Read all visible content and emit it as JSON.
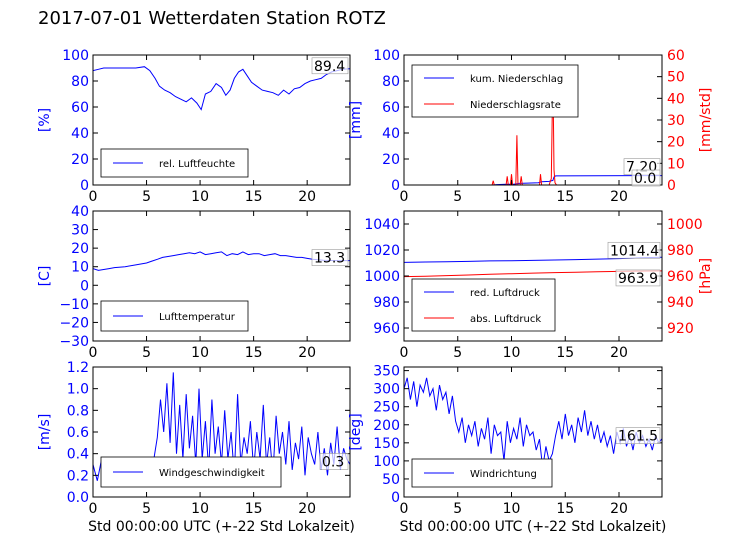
{
  "page_title": "2017-07-01 Wetterdaten Station ROTZ",
  "colors": {
    "primary": "#0000ff",
    "secondary": "#ff0000",
    "axis": "#000000"
  },
  "chart_data": [
    {
      "id": "humidity",
      "type": "line",
      "ylabel": "[%]",
      "xlim": [
        0,
        24
      ],
      "ylim": [
        0,
        100
      ],
      "xticks": [
        0,
        5,
        10,
        15,
        20
      ],
      "yticks": [
        0,
        20,
        40,
        60,
        80,
        100
      ],
      "legend_position": "lower-left",
      "last_value_label": "89.4",
      "series": [
        {
          "name": "rel. Luftfeuchte",
          "color": "#0000ff",
          "axis": "left",
          "x": [
            0,
            0.5,
            1,
            2,
            3,
            4,
            4.8,
            5.3,
            5.8,
            6.2,
            6.7,
            7.2,
            7.7,
            8.2,
            8.7,
            9.2,
            9.7,
            10.1,
            10.5,
            11,
            11.5,
            12,
            12.4,
            12.8,
            13.2,
            13.6,
            14,
            14.4,
            14.8,
            15.3,
            15.8,
            16.3,
            16.8,
            17.3,
            17.8,
            18.3,
            18.8,
            19.3,
            19.8,
            20.3,
            20.8,
            21.3,
            21.8,
            22.3,
            22.8,
            23.3,
            24
          ],
          "y": [
            88,
            89,
            90,
            90,
            90,
            90,
            91,
            88,
            82,
            76,
            73,
            71,
            68,
            66,
            64,
            67,
            63,
            58,
            70,
            72,
            78,
            75,
            69,
            73,
            82,
            87,
            89,
            84,
            79,
            76,
            73,
            72,
            71,
            69,
            73,
            70,
            74,
            75,
            78,
            80,
            81,
            82,
            85,
            87,
            88,
            89,
            89.4
          ]
        }
      ]
    },
    {
      "id": "precipitation",
      "type": "line",
      "ylabel": "[mm]",
      "ylabel_right": "[mm/std]",
      "xlim": [
        0,
        24
      ],
      "ylim": [
        0,
        100
      ],
      "ylim_right": [
        0,
        60
      ],
      "xticks": [
        0,
        5,
        10,
        15,
        20
      ],
      "yticks": [
        0,
        20,
        40,
        60,
        80,
        100
      ],
      "yticks_right": [
        0,
        10,
        20,
        30,
        40,
        50,
        60
      ],
      "legend_position": "upper-left",
      "last_value_labels": [
        "7.20",
        "0.0"
      ],
      "series": [
        {
          "name": "kum. Niederschlag",
          "color": "#0000ff",
          "axis": "left",
          "x": [
            0,
            8.2,
            8.6,
            9.5,
            10.2,
            10.5,
            10.7,
            11.5,
            12.5,
            12.8,
            13.5,
            13.85,
            13.95,
            14.1,
            18,
            22,
            24
          ],
          "y": [
            0,
            0,
            0.3,
            0.5,
            0.6,
            1.0,
            1.2,
            1.5,
            1.8,
            2.5,
            2.8,
            3.5,
            6.2,
            7.0,
            7.1,
            7.2,
            7.2
          ]
        }
      ],
      "series_right": [
        {
          "name": "Niederschlagsrate",
          "color": "#ff0000",
          "axis": "right",
          "x": [
            0,
            8.2,
            8.3,
            8.4,
            9.0,
            9.5,
            9.6,
            9.7,
            9.9,
            10.0,
            10.1,
            10.4,
            10.5,
            10.6,
            10.8,
            10.9,
            11.0,
            11.5,
            12.6,
            12.7,
            12.8,
            13.5,
            13.7,
            13.85,
            13.95,
            14.05,
            14.2,
            16,
            20,
            24
          ],
          "y": [
            0,
            0,
            2,
            0,
            0,
            0,
            4,
            0,
            0,
            5,
            0,
            0,
            23,
            0,
            0,
            4,
            0,
            0,
            0,
            5,
            0,
            0,
            3,
            53,
            7,
            1,
            0,
            0,
            0,
            0
          ]
        }
      ]
    },
    {
      "id": "temperature",
      "type": "line",
      "ylabel": "[C]",
      "xlim": [
        0,
        24
      ],
      "ylim": [
        -30,
        40
      ],
      "xticks": [
        0,
        5,
        10,
        15,
        20
      ],
      "yticks": [
        -30,
        -20,
        -10,
        0,
        10,
        20,
        30,
        40
      ],
      "legend_position": "lower-left",
      "last_value_label": "13.3",
      "series": [
        {
          "name": "Lufttemperatur",
          "color": "#0000ff",
          "axis": "left",
          "x": [
            0,
            0.5,
            1,
            1.5,
            2,
            3,
            4,
            5,
            5.5,
            6,
            6.5,
            7,
            7.5,
            8,
            8.5,
            9,
            9.5,
            10,
            10.5,
            11,
            11.5,
            12,
            12.5,
            13,
            13.5,
            14,
            14.5,
            15,
            15.5,
            16,
            16.5,
            17,
            17.5,
            18,
            18.5,
            19,
            19.5,
            20,
            20.5,
            21,
            21.5,
            22,
            22.5,
            23,
            23.5,
            24
          ],
          "y": [
            9,
            8,
            8.5,
            9,
            9.5,
            10,
            11,
            12,
            13,
            14,
            15,
            15.5,
            16,
            16.5,
            17,
            17.5,
            17,
            18,
            16.5,
            17,
            17.5,
            18,
            16,
            17,
            16.5,
            18,
            16.5,
            17,
            17,
            16,
            16.5,
            17,
            16,
            16,
            15.5,
            15,
            15,
            14.5,
            14,
            13.8,
            13.5,
            13.4,
            13.3,
            13.3,
            13.3,
            13.3
          ]
        }
      ]
    },
    {
      "id": "pressure",
      "type": "line",
      "ylabel_right": "[hPa]",
      "xlim": [
        0,
        24
      ],
      "ylim": [
        950,
        1050
      ],
      "ylim_right": [
        910,
        1010
      ],
      "xticks": [
        0,
        5,
        10,
        15,
        20
      ],
      "yticks": [
        960,
        980,
        1000,
        1020,
        1040
      ],
      "yticks_right": [
        920,
        940,
        960,
        980,
        1000
      ],
      "legend_position": "lower-left",
      "last_value_labels": [
        "1014.4",
        "963.9"
      ],
      "series": [
        {
          "name": "red. Luftdruck",
          "color": "#0000ff",
          "axis": "left",
          "x": [
            0,
            2,
            4,
            6,
            8,
            10,
            12,
            14,
            16,
            18,
            20,
            22,
            24
          ],
          "y": [
            1010.5,
            1010.8,
            1011,
            1011.2,
            1011.6,
            1011.8,
            1012,
            1012.3,
            1012.6,
            1013,
            1013.4,
            1014,
            1014.4
          ]
        }
      ],
      "series_right": [
        {
          "name": "abs. Luftdruck",
          "color": "#ff0000",
          "axis": "right",
          "x": [
            0,
            2,
            4,
            6,
            8,
            10,
            12,
            14,
            16,
            18,
            20,
            22,
            24
          ],
          "y": [
            959.5,
            959.8,
            960.3,
            960.8,
            961.3,
            961.8,
            962.2,
            962.6,
            962.9,
            963.2,
            963.5,
            963.8,
            963.9
          ]
        }
      ]
    },
    {
      "id": "windspeed",
      "type": "line",
      "ylabel": "[m/s]",
      "xlabel": "Std 00:00:00 UTC (+-22 Std Lokalzeit)",
      "xlim": [
        0,
        24
      ],
      "ylim": [
        0,
        1.2
      ],
      "xticks": [
        0,
        5,
        10,
        15,
        20
      ],
      "yticks": [
        0.0,
        0.2,
        0.4,
        0.6,
        0.8,
        1.0,
        1.2
      ],
      "legend_position": "lower-left",
      "last_value_label": "0.3",
      "series": [
        {
          "name": "Windgeschwindigkeit",
          "color": "#0000ff",
          "axis": "left",
          "x": [
            0,
            0.4,
            0.8,
            1.2,
            1.6,
            2,
            2.4,
            2.8,
            3.2,
            3.6,
            4,
            4.4,
            4.8,
            5.2,
            5.6,
            6,
            6.3,
            6.6,
            6.9,
            7.2,
            7.5,
            7.8,
            8.1,
            8.4,
            8.7,
            9,
            9.3,
            9.6,
            9.9,
            10.2,
            10.5,
            10.8,
            11.1,
            11.4,
            11.7,
            12,
            12.3,
            12.6,
            12.9,
            13.2,
            13.5,
            13.8,
            14.1,
            14.4,
            14.7,
            15,
            15.3,
            15.6,
            15.9,
            16.2,
            16.5,
            16.8,
            17.1,
            17.4,
            17.7,
            18,
            18.3,
            18.6,
            18.9,
            19.2,
            19.5,
            19.8,
            20.1,
            20.4,
            20.7,
            21,
            21.3,
            21.6,
            21.9,
            22.2,
            22.5,
            22.8,
            23.1,
            23.4,
            23.7,
            24
          ],
          "y": [
            0.3,
            0.15,
            0.35,
            0.1,
            0.25,
            0.12,
            0.3,
            0.1,
            0.28,
            0.15,
            0.32,
            0.12,
            0.35,
            0.15,
            0.3,
            0.55,
            0.9,
            0.6,
            1.05,
            0.5,
            1.15,
            0.4,
            0.85,
            0.35,
            0.95,
            0.45,
            0.75,
            0.3,
            1.0,
            0.35,
            0.7,
            0.25,
            0.9,
            0.4,
            0.65,
            0.3,
            0.8,
            0.35,
            0.6,
            0.2,
            0.95,
            0.3,
            0.55,
            0.4,
            0.7,
            0.25,
            0.6,
            0.35,
            0.85,
            0.3,
            0.55,
            0.2,
            0.75,
            0.4,
            0.6,
            0.3,
            0.7,
            0.25,
            0.5,
            0.35,
            0.65,
            0.2,
            0.55,
            0.4,
            0.3,
            0.6,
            0.25,
            0.45,
            0.2,
            0.5,
            0.3,
            0.65,
            0.25,
            0.45,
            0.35,
            0.3
          ]
        }
      ]
    },
    {
      "id": "winddirection",
      "type": "line",
      "ylabel": "[deg]",
      "xlabel": "Std 00:00:00 UTC (+-22 Std Lokalzeit)",
      "xlim": [
        0,
        24
      ],
      "ylim": [
        0,
        360
      ],
      "xticks": [
        0,
        5,
        10,
        15,
        20
      ],
      "yticks": [
        0,
        50,
        100,
        150,
        200,
        250,
        300,
        350
      ],
      "legend_position": "lower-left",
      "last_value_label": "161.5",
      "series": [
        {
          "name": "Windrichtung",
          "color": "#0000ff",
          "axis": "left",
          "x": [
            0,
            0.3,
            0.6,
            0.9,
            1.2,
            1.5,
            1.8,
            2.1,
            2.4,
            2.7,
            3,
            3.3,
            3.6,
            3.9,
            4.2,
            4.5,
            4.8,
            5.1,
            5.4,
            5.7,
            6,
            6.3,
            6.6,
            6.9,
            7.2,
            7.5,
            7.8,
            8.1,
            8.4,
            8.7,
            9,
            9.3,
            9.6,
            9.9,
            10.2,
            10.5,
            10.8,
            11.1,
            11.4,
            11.7,
            12,
            12.3,
            12.6,
            12.9,
            13.2,
            13.5,
            13.8,
            14.1,
            14.4,
            14.7,
            15,
            15.3,
            15.6,
            15.9,
            16.2,
            16.5,
            16.8,
            17.1,
            17.4,
            17.7,
            18,
            18.3,
            18.6,
            18.9,
            19.2,
            19.5,
            19.8,
            20.1,
            20.4,
            20.7,
            21,
            21.3,
            21.6,
            21.9,
            22.2,
            22.5,
            22.8,
            23.1,
            23.4,
            23.7,
            24
          ],
          "y": [
            300,
            330,
            270,
            320,
            250,
            310,
            290,
            330,
            280,
            300,
            240,
            310,
            270,
            290,
            230,
            280,
            210,
            180,
            220,
            150,
            200,
            170,
            210,
            140,
            190,
            160,
            220,
            120,
            200,
            170,
            180,
            100,
            210,
            150,
            190,
            160,
            220,
            140,
            200,
            170,
            180,
            130,
            160,
            80,
            140,
            100,
            120,
            170,
            210,
            160,
            230,
            170,
            200,
            150,
            220,
            180,
            240,
            170,
            210,
            160,
            200,
            150,
            180,
            140,
            170,
            120,
            180,
            150,
            190,
            140,
            170,
            130,
            180,
            150,
            170,
            140,
            160,
            130,
            170,
            150,
            161.5
          ]
        }
      ]
    }
  ]
}
